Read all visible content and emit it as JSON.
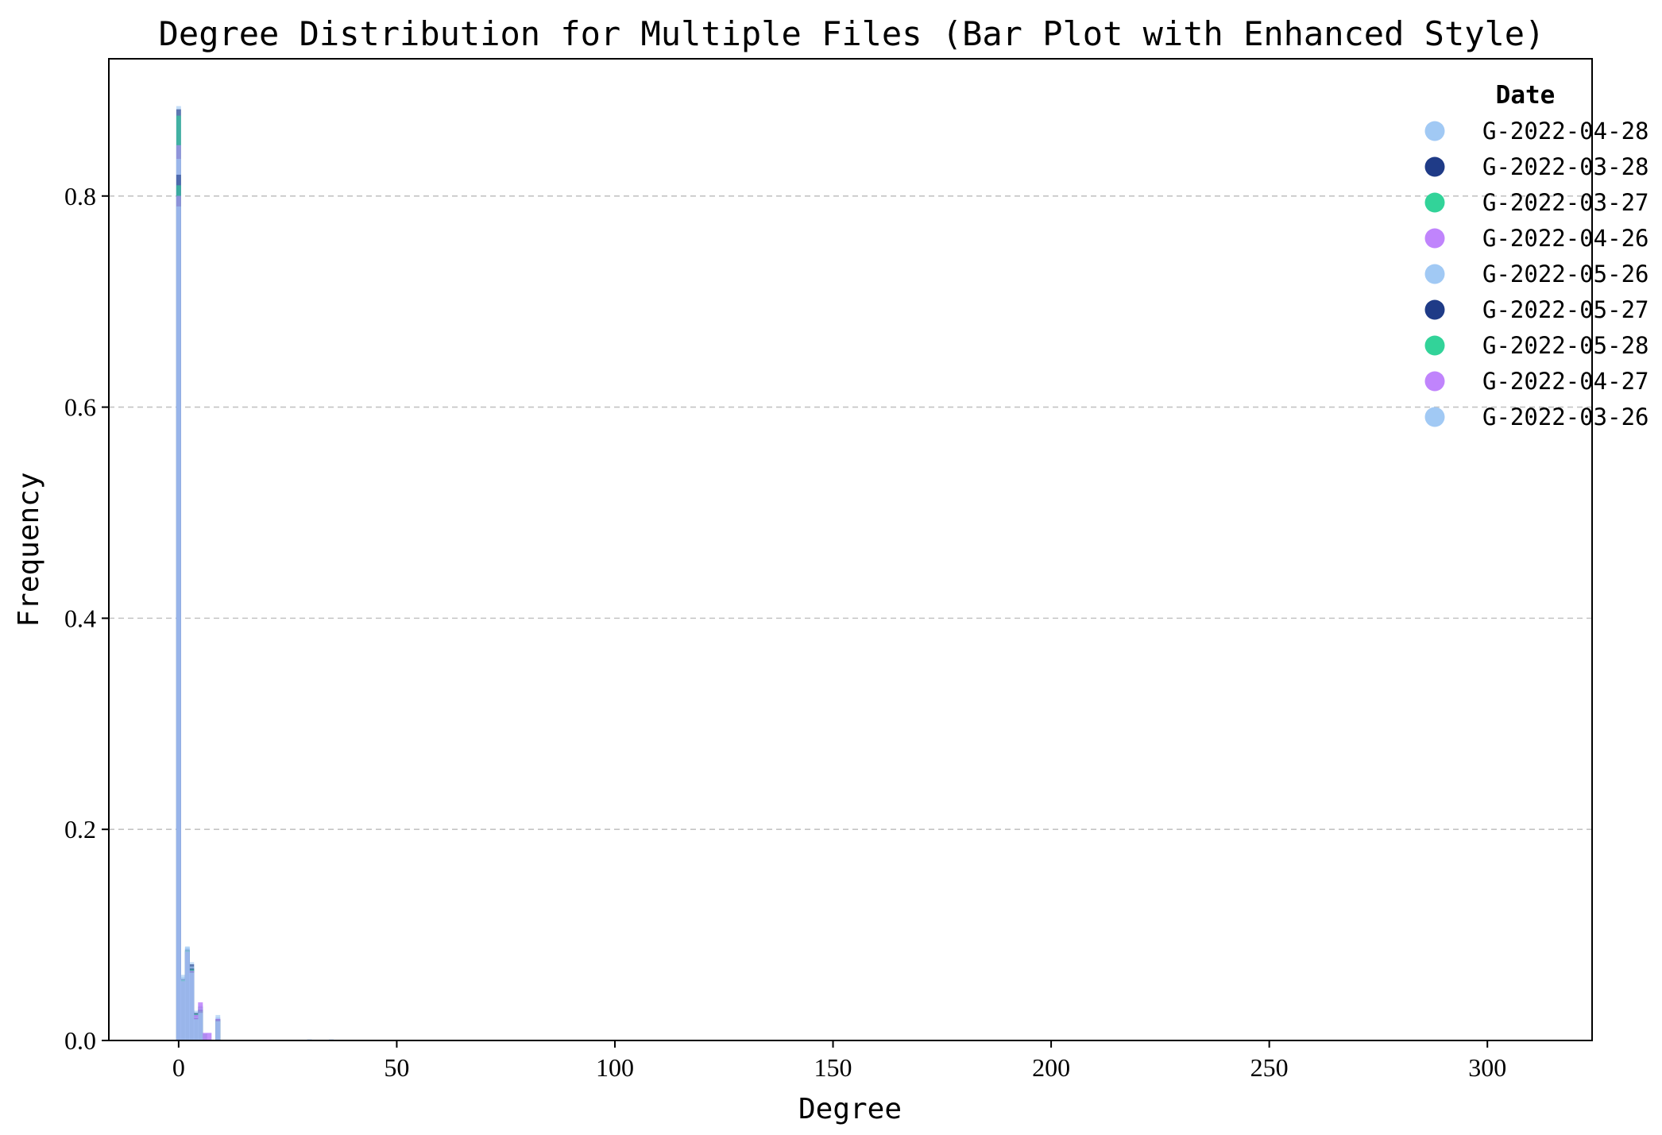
{
  "chart_data": {
    "type": "bar",
    "title": "Degree Distribution for Multiple Files (Bar Plot with Enhanced Style)",
    "xlabel": "Degree",
    "ylabel": "Frequency",
    "xlim": [
      -16,
      324
    ],
    "ylim": [
      0,
      0.93
    ],
    "xticks": [
      0,
      50,
      100,
      150,
      200,
      250,
      300
    ],
    "yticks": [
      0.0,
      0.2,
      0.4,
      0.6,
      0.8
    ],
    "xtick_labels": [
      "0",
      "50",
      "100",
      "150",
      "200",
      "250",
      "300"
    ],
    "ytick_labels": [
      "0.0",
      "0.2",
      "0.4",
      "0.6",
      "0.8"
    ],
    "grid": "y-dashed",
    "legend_title": "Date",
    "legend_location": "top-right",
    "series": [
      {
        "name": "G-2022-04-28",
        "color": "#a1c9f4",
        "x": [
          0,
          1,
          2,
          3,
          4,
          5,
          6,
          7,
          9,
          30,
          35
        ],
        "values": [
          0.885,
          0.062,
          0.088,
          0.074,
          0.028,
          0.034,
          0.007,
          0.007,
          0.024,
          0.001,
          0.001
        ]
      },
      {
        "name": "G-2022-03-28",
        "color": "#1f3b87",
        "x": [
          0,
          1,
          2,
          3,
          4,
          5,
          6,
          9
        ],
        "values": [
          0.882,
          0.058,
          0.085,
          0.072,
          0.026,
          0.032,
          0.006,
          0.02
        ]
      },
      {
        "name": "G-2022-03-27",
        "color": "#32d399",
        "x": [
          0,
          1,
          2,
          3,
          4,
          5,
          6,
          9
        ],
        "values": [
          0.876,
          0.057,
          0.084,
          0.068,
          0.025,
          0.031,
          0.006,
          0.019
        ]
      },
      {
        "name": "G-2022-04-26",
        "color": "#c084fc",
        "x": [
          0,
          1,
          2,
          3,
          4,
          5,
          6,
          7,
          9
        ],
        "values": [
          0.848,
          0.056,
          0.082,
          0.066,
          0.024,
          0.036,
          0.007,
          0.007,
          0.021
        ]
      },
      {
        "name": "G-2022-05-26",
        "color": "#a1c9f4",
        "x": [
          0,
          1,
          2,
          3,
          4,
          5,
          9
        ],
        "values": [
          0.835,
          0.06,
          0.089,
          0.07,
          0.022,
          0.03,
          0.022
        ]
      },
      {
        "name": "G-2022-05-27",
        "color": "#1f3b87",
        "x": [
          0,
          1,
          2,
          3,
          4,
          5,
          9
        ],
        "values": [
          0.82,
          0.058,
          0.086,
          0.068,
          0.021,
          0.029,
          0.02
        ]
      },
      {
        "name": "G-2022-05-28",
        "color": "#32d399",
        "x": [
          0,
          1,
          2,
          3,
          4,
          5,
          9
        ],
        "values": [
          0.81,
          0.057,
          0.085,
          0.067,
          0.02,
          0.028,
          0.019
        ]
      },
      {
        "name": "G-2022-04-27",
        "color": "#c084fc",
        "x": [
          0,
          1,
          2,
          3,
          4,
          5,
          6,
          7,
          9
        ],
        "values": [
          0.8,
          0.056,
          0.084,
          0.066,
          0.024,
          0.036,
          0.007,
          0.007,
          0.02
        ]
      },
      {
        "name": "G-2022-03-26",
        "color": "#a1c9f4",
        "x": [
          0,
          1,
          2,
          3,
          4,
          5,
          9
        ],
        "values": [
          0.79,
          0.058,
          0.088,
          0.064,
          0.02,
          0.026,
          0.018
        ]
      }
    ]
  }
}
